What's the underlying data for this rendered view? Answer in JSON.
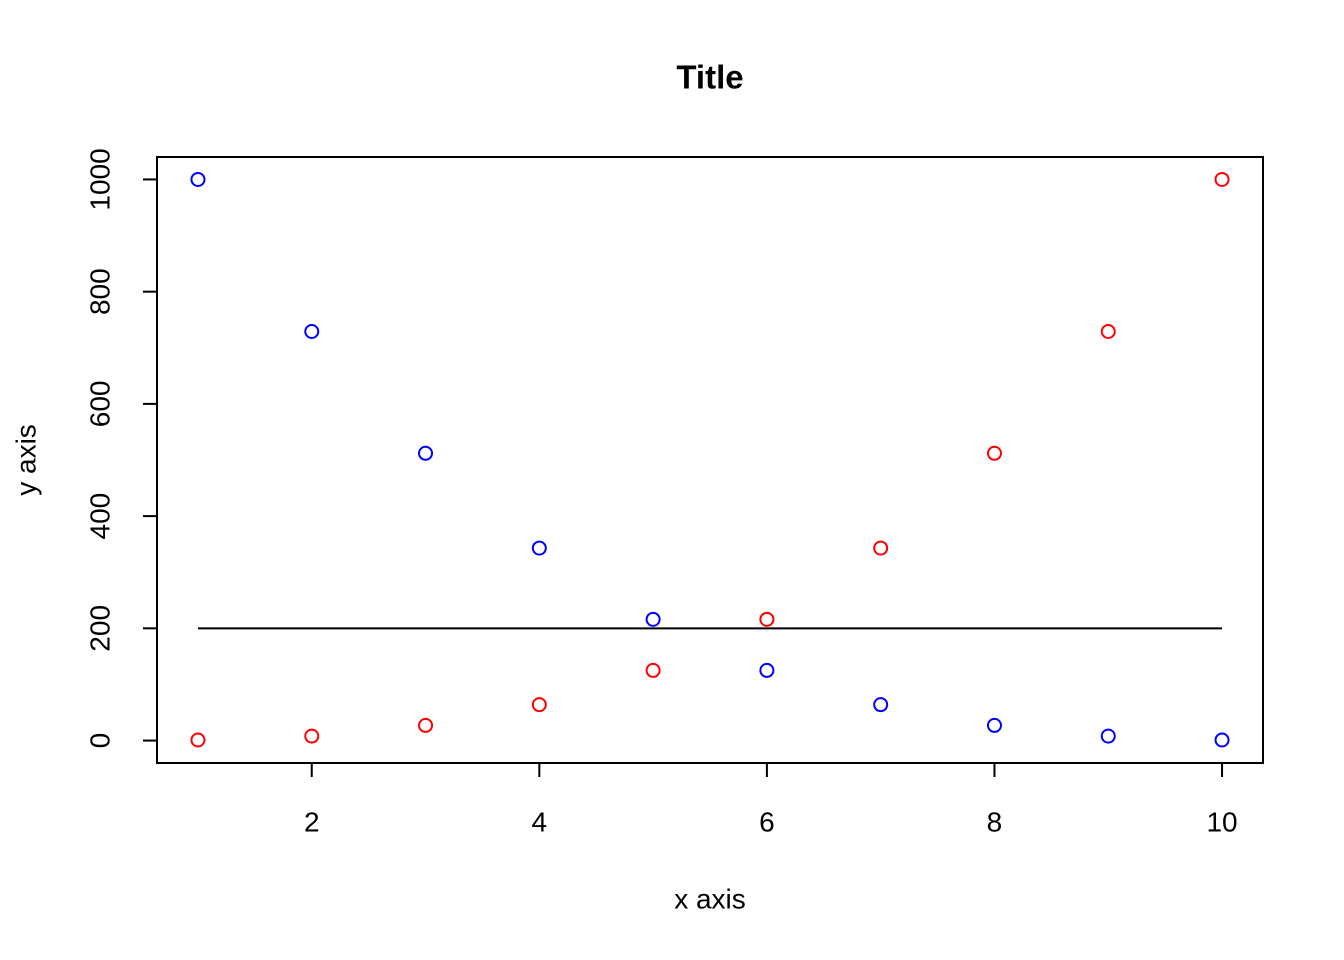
{
  "chart_data": {
    "type": "scatter",
    "title": "Title",
    "x_label": "x axis",
    "y_label": "y axis",
    "x": [
      1,
      2,
      3,
      4,
      5,
      6,
      7,
      8,
      9,
      10
    ],
    "series": [
      {
        "color": "#0000ff",
        "values": [
          1000,
          729,
          512,
          343,
          216,
          125,
          64,
          27,
          8,
          1
        ]
      },
      {
        "color": "#ff0000",
        "values": [
          1,
          8,
          27,
          64,
          125,
          216,
          343,
          512,
          729,
          1000
        ]
      }
    ],
    "lines": [
      {
        "color": "#000000",
        "x": [
          1,
          10
        ],
        "values": [
          200,
          200
        ]
      }
    ],
    "xlim": [
      0.64,
      10.36
    ],
    "ylim": [
      -40,
      1040
    ],
    "xticks": [
      2,
      4,
      6,
      8,
      10
    ],
    "yticks": [
      0,
      200,
      400,
      600,
      800,
      1000
    ],
    "grid": false
  }
}
